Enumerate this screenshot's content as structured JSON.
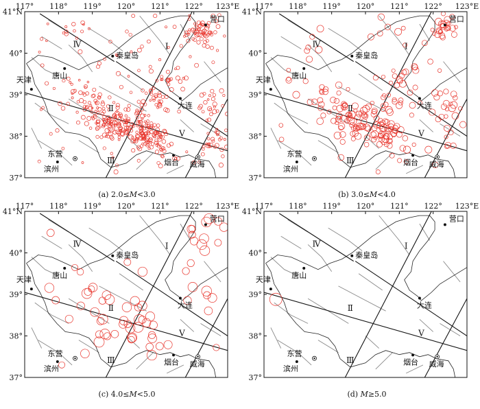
{
  "axes": {
    "lon_ticks": [
      "117°",
      "118°",
      "119°",
      "120°",
      "121°",
      "122°",
      "123°E"
    ],
    "lat_ticks": [
      "41°N",
      "40°",
      "39°",
      "38°",
      "37°"
    ]
  },
  "cities": {
    "yingkou": "营口",
    "qinhuangdao": "秦皇岛",
    "tangshan": "唐山",
    "tianjin": "天津",
    "dalian": "大连",
    "dongying": "东营",
    "binzhou": "滨州",
    "yantai": "烟台",
    "weihai": "威海"
  },
  "zones": {
    "z1": "Ⅰ",
    "z2": "Ⅱ",
    "z3": "Ⅲ",
    "z4": "Ⅳ",
    "z5": "Ⅴ"
  },
  "panels": [
    {
      "id": "a",
      "caption_prefix": "(a) 2.0≤",
      "caption_var": "M",
      "caption_suffix": "<3.0",
      "count": 520,
      "rmin": 1.4,
      "rmax": 3.2
    },
    {
      "id": "b",
      "caption_prefix": "(b) 3.0≤",
      "caption_var": "M",
      "caption_suffix": "<4.0",
      "count": 240,
      "rmin": 2.6,
      "rmax": 5.2
    },
    {
      "id": "c",
      "caption_prefix": "(c) 4.0≤",
      "caption_var": "M",
      "caption_suffix": "<5.0",
      "count": 70,
      "rmin": 4.5,
      "rmax": 7.5
    },
    {
      "id": "d",
      "caption_prefix": "(d) ",
      "caption_var": "M",
      "caption_suffix": "≥5.0",
      "count": 1,
      "rmin": 9,
      "rmax": 9
    }
  ],
  "colors": {
    "quake": "#e8352c",
    "frame": "#111111",
    "fault": "#888888"
  }
}
